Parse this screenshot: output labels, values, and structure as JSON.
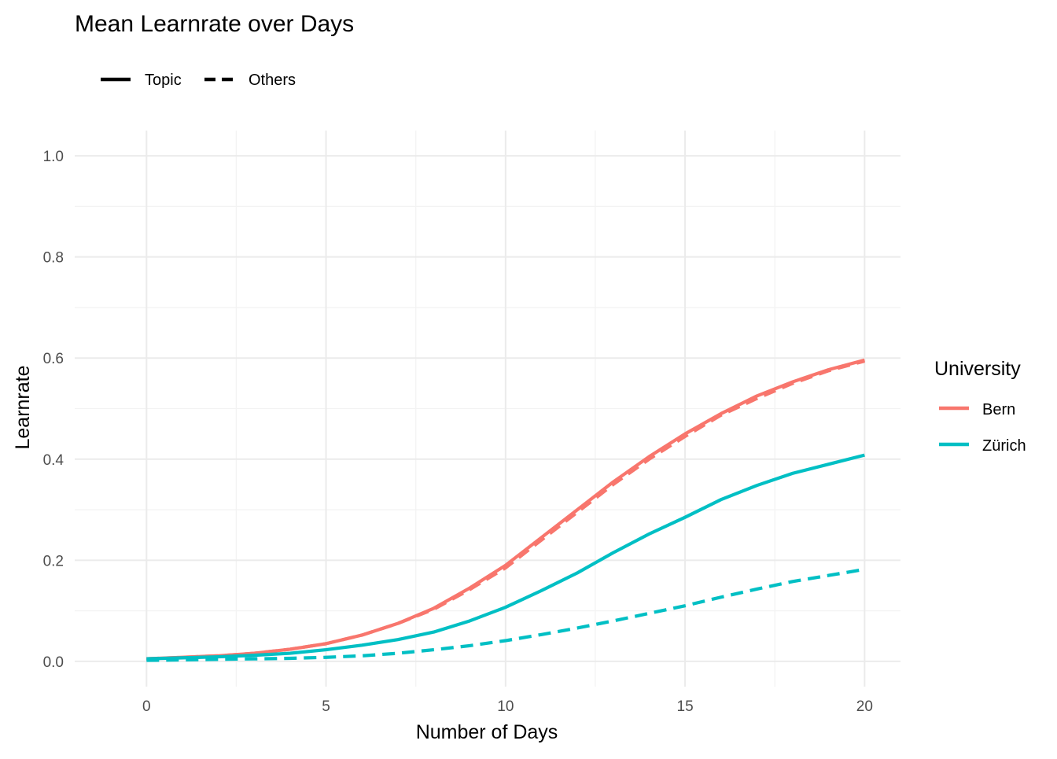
{
  "chart_data": {
    "type": "line",
    "title": "Mean Learnrate over Days",
    "xlabel": "Number of Days",
    "ylabel": "Learnrate",
    "xlim": [
      -2,
      21
    ],
    "ylim": [
      -0.05,
      1.05
    ],
    "x_ticks": [
      0,
      5,
      10,
      15,
      20
    ],
    "y_ticks": [
      0.0,
      0.2,
      0.4,
      0.6,
      0.8,
      1.0
    ],
    "x_tick_labels": [
      "0",
      "5",
      "10",
      "15",
      "20"
    ],
    "y_tick_labels": [
      "0.0",
      "0.2",
      "0.4",
      "0.6",
      "0.8",
      "1.0"
    ],
    "grid": true,
    "x": [
      0,
      1,
      2,
      3,
      4,
      5,
      6,
      7,
      8,
      9,
      10,
      11,
      12,
      13,
      14,
      15,
      16,
      17,
      18,
      19,
      20
    ],
    "linetype_legend": {
      "placement": "top-left",
      "items": [
        {
          "label": "Topic",
          "style": "solid"
        },
        {
          "label": "Others",
          "style": "dashed"
        }
      ]
    },
    "color_legend": {
      "title": "University",
      "placement": "right",
      "items": [
        {
          "label": "Bern",
          "color": "#F8766D"
        },
        {
          "label": "Zürich",
          "color": "#00BFC4"
        }
      ]
    },
    "series": [
      {
        "group": "Bern",
        "type": "Topic",
        "color": "#F8766D",
        "style": "solid",
        "values": [
          0.005,
          0.008,
          0.011,
          0.016,
          0.024,
          0.035,
          0.052,
          0.075,
          0.105,
          0.145,
          0.19,
          0.245,
          0.3,
          0.355,
          0.405,
          0.45,
          0.49,
          0.525,
          0.553,
          0.577,
          0.596
        ]
      },
      {
        "group": "Bern",
        "type": "Others",
        "color": "#F8766D",
        "style": "dashed",
        "values": [
          0.005,
          0.008,
          0.011,
          0.016,
          0.024,
          0.035,
          0.052,
          0.075,
          0.103,
          0.142,
          0.185,
          0.24,
          0.295,
          0.35,
          0.4,
          0.445,
          0.487,
          0.52,
          0.55,
          0.575,
          0.594
        ]
      },
      {
        "group": "Zürich",
        "type": "Topic",
        "color": "#00BFC4",
        "style": "solid",
        "values": [
          0.005,
          0.007,
          0.009,
          0.012,
          0.016,
          0.023,
          0.032,
          0.043,
          0.058,
          0.08,
          0.107,
          0.14,
          0.175,
          0.215,
          0.252,
          0.285,
          0.32,
          0.348,
          0.372,
          0.39,
          0.408
        ]
      },
      {
        "group": "Zürich",
        "type": "Others",
        "color": "#00BFC4",
        "style": "dashed",
        "values": [
          0.002,
          0.003,
          0.004,
          0.005,
          0.006,
          0.008,
          0.011,
          0.016,
          0.023,
          0.031,
          0.041,
          0.053,
          0.066,
          0.08,
          0.095,
          0.11,
          0.127,
          0.143,
          0.158,
          0.17,
          0.182
        ]
      }
    ]
  }
}
